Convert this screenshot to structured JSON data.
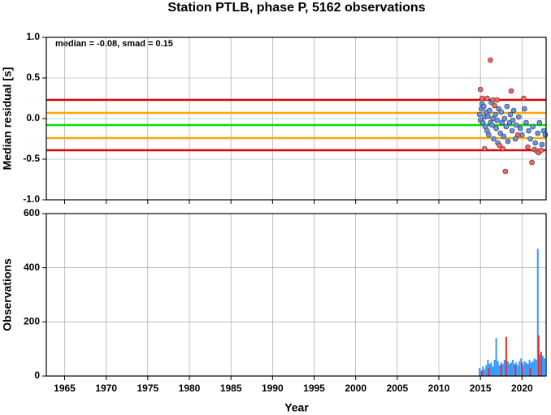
{
  "chart_data": [
    {
      "type": "scatter",
      "title": "Station PTLB, phase P, 5162 observations",
      "ylabel": "Median residual [s]",
      "annotation": "median = -0.08, smad = 0.15",
      "xlim": [
        1962.8,
        2022.9
      ],
      "xticks": [
        1965,
        1970,
        1975,
        1980,
        1985,
        1990,
        1995,
        2000,
        2005,
        2010,
        2015,
        2020
      ],
      "ylim": [
        -1.0,
        1.0
      ],
      "yticks": [
        {
          "value": 1.0,
          "label": "1.0"
        },
        0.5,
        {
          "value": 0.0,
          "label": "0.0"
        },
        -0.5,
        {
          "value": -1.0,
          "label": "-1.0"
        }
      ],
      "grid": true,
      "reference_lines": [
        {
          "value": 0.23,
          "color": "#e00000"
        },
        {
          "value": 0.07,
          "color": "#ffa500"
        },
        {
          "value": -0.08,
          "color": "#00e000"
        },
        {
          "value": -0.24,
          "color": "#ffa500"
        },
        {
          "value": -0.39,
          "color": "#e00000"
        }
      ],
      "series": [
        {
          "color": "#6495ed",
          "x": [
            2014.9,
            2015.0,
            2015.1,
            2015.2,
            2015.3,
            2015.4,
            2015.5,
            2015.6,
            2015.7,
            2015.8,
            2015.9,
            2016.0,
            2016.1,
            2016.2,
            2016.3,
            2016.4,
            2016.5,
            2016.6,
            2016.8,
            2016.9,
            2017.0,
            2017.1,
            2017.2,
            2017.4,
            2017.5,
            2017.6,
            2017.8,
            2017.9,
            2018.1,
            2018.2,
            2018.3,
            2018.5,
            2018.6,
            2018.8,
            2018.9,
            2019.0,
            2019.2,
            2019.3,
            2019.6,
            2019.8,
            2020.0,
            2020.3,
            2020.5,
            2020.8,
            2021.0,
            2021.3,
            2021.6,
            2021.9,
            2022.1,
            2022.4,
            2022.6,
            2022.8
          ],
          "values": [
            0.05,
            -0.02,
            0.12,
            0.18,
            -0.05,
            0.15,
            0.02,
            -0.1,
            0.08,
            -0.15,
            0.03,
            -0.2,
            0.1,
            -0.05,
            0.2,
            -0.08,
            0.0,
            -0.25,
            0.05,
            -0.12,
            -0.02,
            -0.3,
            0.12,
            -0.18,
            0.08,
            -0.05,
            -0.22,
            0.0,
            -0.1,
            0.15,
            -0.28,
            -0.05,
            0.05,
            -0.15,
            -0.02,
            0.1,
            -0.25,
            -0.08,
            0.02,
            -0.12,
            -0.2,
            0.12,
            -0.05,
            -0.15,
            -0.25,
            -0.1,
            -0.3,
            -0.18,
            -0.05,
            -0.32,
            -0.15,
            -0.2
          ]
        },
        {
          "color": "#ff6060",
          "x": [
            2015.0,
            2015.2,
            2015.5,
            2015.8,
            2016.2,
            2016.5,
            2016.7,
            2017.0,
            2017.3,
            2017.7,
            2018.0,
            2018.7,
            2019.5,
            2020.2,
            2020.7,
            2021.2,
            2021.5,
            2021.8,
            2022.0,
            2022.3
          ],
          "values": [
            0.36,
            0.25,
            -0.37,
            0.25,
            0.72,
            0.23,
            0.16,
            0.23,
            -0.33,
            -0.37,
            -0.65,
            0.34,
            -0.2,
            0.25,
            -0.35,
            -0.54,
            -0.38,
            -0.4,
            -0.42,
            -0.39
          ]
        }
      ]
    },
    {
      "type": "bar",
      "ylabel": "Observations",
      "xlabel": "Year",
      "xlim": [
        1962.8,
        2022.9
      ],
      "xticks": [
        1965,
        1970,
        1975,
        1980,
        1985,
        1990,
        1995,
        2000,
        2005,
        2010,
        2015,
        2020
      ],
      "ylim": [
        0,
        600
      ],
      "yticks": [
        0,
        200,
        400,
        600
      ],
      "grid": true,
      "series": [
        {
          "color": "#3399ff",
          "x": [
            2014.9,
            2015.1,
            2015.3,
            2015.5,
            2015.7,
            2015.9,
            2016.1,
            2016.3,
            2016.5,
            2016.7,
            2016.9,
            2017.1,
            2017.3,
            2017.5,
            2017.7,
            2017.9,
            2018.1,
            2018.3,
            2018.5,
            2018.7,
            2018.9,
            2019.1,
            2019.3,
            2019.5,
            2019.7,
            2019.9,
            2020.1,
            2020.3,
            2020.5,
            2020.7,
            2020.9,
            2021.1,
            2021.3,
            2021.5,
            2021.7,
            2021.9,
            2022.1,
            2022.3,
            2022.5,
            2022.7
          ],
          "values": [
            30,
            20,
            35,
            25,
            40,
            60,
            45,
            50,
            35,
            60,
            140,
            55,
            40,
            50,
            45,
            60,
            40,
            55,
            45,
            50,
            60,
            45,
            50,
            40,
            55,
            65,
            40,
            55,
            50,
            45,
            60,
            50,
            55,
            65,
            60,
            470,
            80,
            70,
            75,
            65
          ]
        },
        {
          "color": "#e03030",
          "x": [
            2015.2,
            2016.0,
            2017.5,
            2018.1,
            2019.2,
            2020.0,
            2021.0,
            2022.0,
            2022.3
          ],
          "values": [
            20,
            30,
            40,
            145,
            40,
            50,
            30,
            150,
            90
          ]
        }
      ]
    }
  ]
}
